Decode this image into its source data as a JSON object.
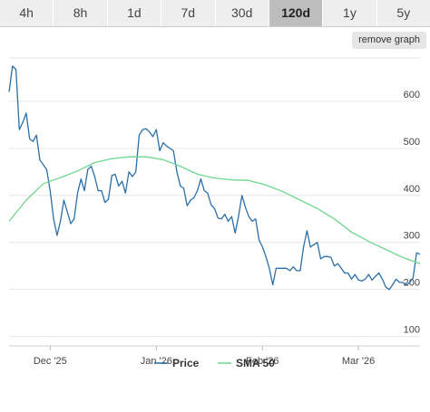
{
  "tabs": [
    {
      "label": "4h",
      "active": false
    },
    {
      "label": "8h",
      "active": false
    },
    {
      "label": "1d",
      "active": false
    },
    {
      "label": "7d",
      "active": false
    },
    {
      "label": "30d",
      "active": false
    },
    {
      "label": "120d",
      "active": true
    },
    {
      "label": "1y",
      "active": false
    },
    {
      "label": "5y",
      "active": false
    }
  ],
  "remove_graph_label": "remove graph",
  "colors": {
    "price": "#2a6fa8",
    "sma": "#6ed68e",
    "grid": "#e6e6e6"
  },
  "chart_data": {
    "type": "line",
    "x_ticks": [
      {
        "label": "Dec '25",
        "x": 12
      },
      {
        "label": "Jan '26",
        "x": 43
      },
      {
        "label": "Feb '26",
        "x": 74
      },
      {
        "label": "Mar '26",
        "x": 102
      }
    ],
    "y_ticks": [
      100,
      200,
      300,
      400,
      500,
      600
    ],
    "xlim": [
      0,
      120
    ],
    "ylim": [
      80,
      700
    ],
    "grid": true,
    "legend_position": "bottom",
    "series": [
      {
        "name": "Price",
        "key": "price",
        "points": [
          [
            0,
            620
          ],
          [
            1,
            675
          ],
          [
            2,
            668
          ],
          [
            3,
            540
          ],
          [
            4,
            555
          ],
          [
            5,
            575
          ],
          [
            6,
            520
          ],
          [
            7,
            515
          ],
          [
            8,
            528
          ],
          [
            9,
            475
          ],
          [
            10,
            465
          ],
          [
            11,
            455
          ],
          [
            12,
            410
          ],
          [
            13,
            350
          ],
          [
            14,
            315
          ],
          [
            15,
            345
          ],
          [
            16,
            390
          ],
          [
            17,
            365
          ],
          [
            18,
            340
          ],
          [
            19,
            350
          ],
          [
            20,
            405
          ],
          [
            21,
            435
          ],
          [
            22,
            410
          ],
          [
            23,
            455
          ],
          [
            24,
            462
          ],
          [
            25,
            440
          ],
          [
            26,
            410
          ],
          [
            27,
            410
          ],
          [
            28,
            385
          ],
          [
            29,
            392
          ],
          [
            30,
            442
          ],
          [
            31,
            445
          ],
          [
            32,
            420
          ],
          [
            33,
            430
          ],
          [
            34,
            405
          ],
          [
            35,
            450
          ],
          [
            36,
            440
          ],
          [
            37,
            450
          ],
          [
            38,
            528
          ],
          [
            39,
            540
          ],
          [
            40,
            542
          ],
          [
            41,
            535
          ],
          [
            42,
            525
          ],
          [
            43,
            540
          ],
          [
            44,
            495
          ],
          [
            45,
            512
          ],
          [
            46,
            505
          ],
          [
            47,
            500
          ],
          [
            48,
            495
          ],
          [
            49,
            450
          ],
          [
            50,
            420
          ],
          [
            51,
            415
          ],
          [
            52,
            378
          ],
          [
            53,
            390
          ],
          [
            54,
            395
          ],
          [
            55,
            410
          ],
          [
            56,
            435
          ],
          [
            57,
            410
          ],
          [
            58,
            405
          ],
          [
            59,
            380
          ],
          [
            60,
            372
          ],
          [
            61,
            352
          ],
          [
            62,
            350
          ],
          [
            63,
            360
          ],
          [
            64,
            345
          ],
          [
            65,
            355
          ],
          [
            66,
            320
          ],
          [
            67,
            355
          ],
          [
            68,
            400
          ],
          [
            69,
            375
          ],
          [
            70,
            355
          ],
          [
            71,
            345
          ],
          [
            72,
            350
          ],
          [
            73,
            305
          ],
          [
            74,
            290
          ],
          [
            75,
            270
          ],
          [
            76,
            245
          ],
          [
            77,
            210
          ],
          [
            78,
            245
          ],
          [
            79,
            245
          ],
          [
            80,
            245
          ],
          [
            81,
            245
          ],
          [
            82,
            240
          ],
          [
            83,
            248
          ],
          [
            84,
            240
          ],
          [
            85,
            240
          ],
          [
            86,
            290
          ],
          [
            87,
            325
          ],
          [
            88,
            290
          ],
          [
            89,
            295
          ],
          [
            90,
            300
          ],
          [
            91,
            265
          ],
          [
            92,
            270
          ],
          [
            93,
            270
          ],
          [
            94,
            268
          ],
          [
            95,
            250
          ],
          [
            96,
            255
          ],
          [
            97,
            245
          ],
          [
            98,
            235
          ],
          [
            99,
            235
          ],
          [
            100,
            222
          ],
          [
            101,
            232
          ],
          [
            102,
            220
          ],
          [
            103,
            218
          ],
          [
            104,
            222
          ],
          [
            105,
            232
          ],
          [
            106,
            220
          ],
          [
            107,
            228
          ],
          [
            108,
            235
          ],
          [
            109,
            222
          ],
          [
            110,
            205
          ],
          [
            111,
            200
          ],
          [
            112,
            210
          ],
          [
            113,
            222
          ],
          [
            114,
            215
          ],
          [
            115,
            215
          ],
          [
            116,
            210
          ],
          [
            117,
            215
          ],
          [
            118,
            225
          ],
          [
            119,
            278
          ],
          [
            120,
            275
          ]
        ]
      },
      {
        "name": "SMA 50",
        "key": "sma",
        "points": [
          [
            0,
            345
          ],
          [
            5,
            390
          ],
          [
            10,
            425
          ],
          [
            15,
            438
          ],
          [
            20,
            452
          ],
          [
            25,
            470
          ],
          [
            30,
            478
          ],
          [
            35,
            482
          ],
          [
            40,
            482
          ],
          [
            45,
            476
          ],
          [
            50,
            462
          ],
          [
            55,
            445
          ],
          [
            60,
            437
          ],
          [
            65,
            433
          ],
          [
            70,
            432
          ],
          [
            75,
            422
          ],
          [
            80,
            408
          ],
          [
            85,
            390
          ],
          [
            90,
            372
          ],
          [
            95,
            350
          ],
          [
            100,
            322
          ],
          [
            105,
            302
          ],
          [
            110,
            285
          ],
          [
            115,
            268
          ],
          [
            120,
            255
          ]
        ]
      }
    ]
  }
}
